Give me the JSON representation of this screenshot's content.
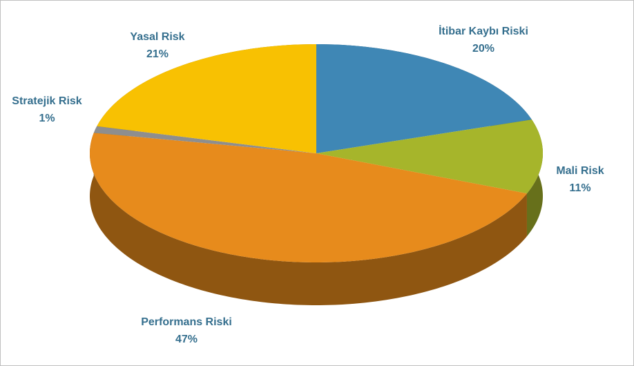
{
  "chart_data": {
    "type": "pie",
    "categories": [
      "İtibar Kaybı Riski",
      "Mali Risk",
      "Performans Riski",
      "Stratejik Risk",
      "Yasal Risk"
    ],
    "values": [
      20,
      11,
      47,
      1,
      21
    ],
    "value_labels": [
      "20%",
      "11%",
      "47%",
      "1%",
      "21%"
    ],
    "colors": [
      "#3f87b5",
      "#a6b52b",
      "#e78b1c",
      "#8e8e8e",
      "#f8c102"
    ]
  }
}
